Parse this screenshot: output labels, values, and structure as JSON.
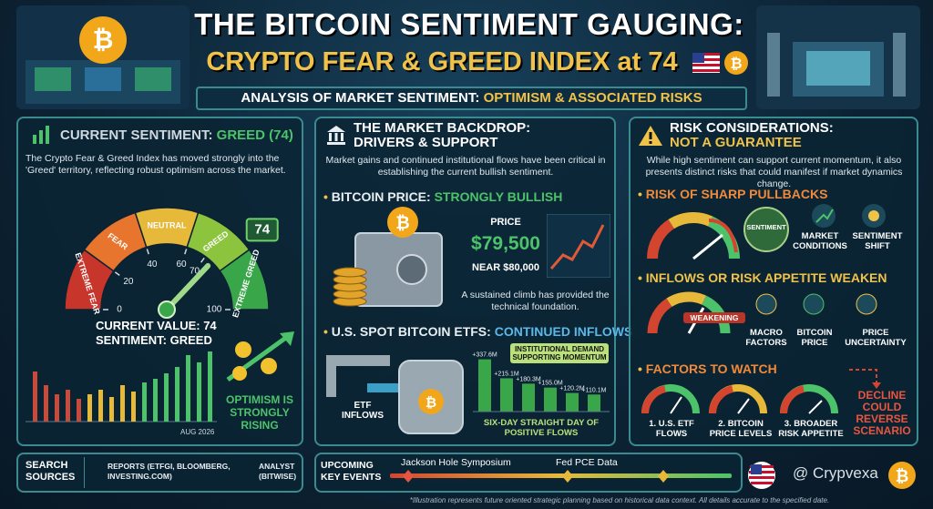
{
  "header": {
    "title_line1": "THE BITCOIN SENTIMENT GAUGING:",
    "title_line2": "CRYPTO FEAR & GREED INDEX at 74",
    "subtitle": "ANALYSIS OF MARKET SENTIMENT:",
    "subtitle_highlight": "OPTIMISM & ASSOCIATED RISKS"
  },
  "panel1": {
    "heading": "CURRENT SENTIMENT:",
    "heading_highlight": "GREED (74)",
    "body": "The Crypto Fear & Greed Index has moved strongly into the 'Greed' territory, reflecting robust optimism across the market.",
    "gauge": {
      "value": 74,
      "zones": [
        "EXTREME FEAR",
        "FEAR",
        "NEUTRAL",
        "GREED",
        "EXTREME GREED"
      ],
      "ticks": [
        0,
        20,
        40,
        60,
        70,
        100
      ]
    },
    "current_value": "CURRENT VALUE: 74",
    "sentiment": "SENTIMENT: GREED",
    "chart_date": "AUG 2026",
    "optimism": "OPTIMISM IS STRONGLY RISING"
  },
  "panel2": {
    "heading": "THE MARKET BACKDROP:",
    "heading2": "DRIVERS & SUPPORT",
    "body": "Market gains and continued institutional flows have been critical in establishing the current bullish sentiment.",
    "section1": "BITCOIN PRICE:",
    "section1_highlight": "STRONGLY BULLISH",
    "price_label": "PRICE",
    "price": "$79,500",
    "near": "NEAR $80,000",
    "note": "A sustained climb has provided the technical foundation.",
    "section2": "U.S. SPOT BITCOIN ETFs:",
    "section2_highlight": "CONTINUED INFLOWS",
    "etf_inflows": "ETF INFLOWS",
    "institutional": "INSTITUTIONAL DEMAND SUPPORTING MOMENTUM",
    "flows": {
      "values": [
        337.6,
        215.1,
        180.3,
        155.0,
        120.2,
        110.1
      ],
      "value_labels": [
        "+337.6M",
        "+215.1M",
        "+180.3M",
        "+155.0M",
        "+120.2M",
        "+110.1M"
      ]
    },
    "flows_caption": "SIX-DAY STRAIGHT DAY OF POSITIVE FLOWS"
  },
  "panel3": {
    "heading": "RISK CONSIDERATIONS:",
    "heading2": "NOT A GUARANTEE",
    "body": "While high sentiment can support current momentum, it also presents distinct risks that could manifest if market dynamics change.",
    "risks": [
      {
        "title": "RISK OF SHARP PULLBACKS",
        "badge": "SENTIMENT",
        "items": [
          "MARKET CONDITIONS",
          "SENTIMENT SHIFT"
        ]
      },
      {
        "title": "INFLOWS OR RISK APPETITE WEAKEN",
        "badge": "WEAKENING",
        "items": [
          "MACRO FACTORS",
          "BITCOIN PRICE",
          "PRICE UNCERTAINTY"
        ]
      }
    ],
    "factors_title": "FACTORS TO WATCH",
    "factors": [
      "1. U.S. ETF FLOWS",
      "2. BITCOIN PRICE LEVELS",
      "3. BROADER RISK APPETITE"
    ],
    "warning": "DECLINE COULD REVERSE SCENARIO"
  },
  "footer": {
    "sources_label": "SEARCH SOURCES",
    "sources": [
      "REPORTS (ETFGI, BLOOMBERG, INVESTING.COM)",
      "ANALYST (BITWISE)"
    ],
    "events_label": "UPCOMING KEY EVENTS",
    "events": [
      "Jackson Hole Symposium",
      "Fed PCE Data"
    ],
    "watermark": "@ Crypvexa",
    "disclaimer": "*Illustration represents future oriented strategic planning based on historical data context. All details accurate to the specified date."
  }
}
